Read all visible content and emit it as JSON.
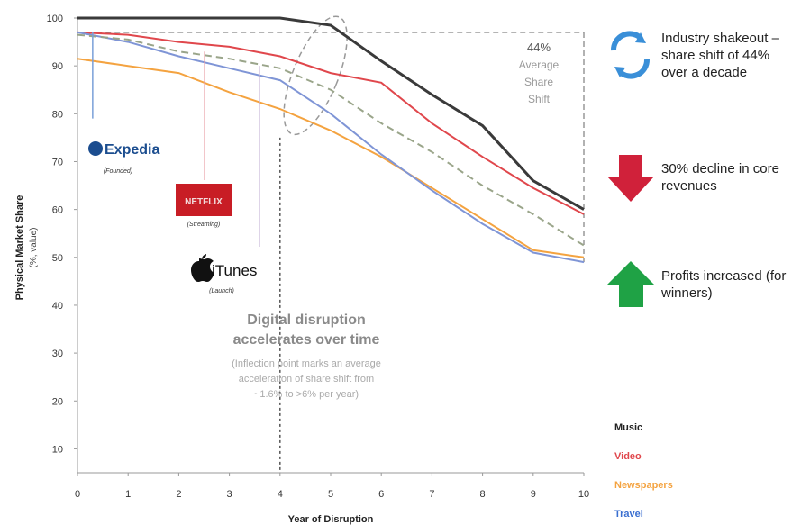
{
  "chart_data": {
    "type": "line",
    "xlabel": "Year of Disruption",
    "ylabel": "Physical Market Share",
    "ylabel_unit": "(%, value)",
    "xlim": [
      0,
      10
    ],
    "ylim": [
      5,
      100
    ],
    "x_ticks": [
      "0",
      "1",
      "2",
      "3",
      "4",
      "5",
      "6",
      "7",
      "8",
      "9",
      "10"
    ],
    "y_ticks": [
      "10",
      "20",
      "30",
      "40",
      "50",
      "60",
      "70",
      "80",
      "90",
      "100"
    ],
    "grid": false,
    "legend_position": "bottom-right",
    "x": [
      0,
      1,
      2,
      3,
      4,
      5,
      6,
      7,
      8,
      9,
      10
    ],
    "series": [
      {
        "name": "Music",
        "color": "#3a3a3a",
        "values": [
          100,
          100,
          100,
          100,
          100,
          98.5,
          91,
          84,
          77.5,
          66,
          60
        ]
      },
      {
        "name": "Video",
        "color": "#e0474c",
        "values": [
          97,
          96.5,
          95,
          94,
          92,
          88.5,
          86.5,
          78,
          71,
          64.5,
          59
        ]
      },
      {
        "name": "Newspapers",
        "color": "#f4a340",
        "values": [
          91.5,
          90,
          88.5,
          84.5,
          81,
          76.5,
          71,
          64.5,
          58,
          51.5,
          50
        ]
      },
      {
        "name": "Travel",
        "color": "#7f95d6",
        "values": [
          97,
          95,
          92,
          89.5,
          87,
          80,
          71.5,
          64,
          57,
          51,
          49
        ]
      },
      {
        "name": "",
        "color": "#9aa58a",
        "dashed": true,
        "values": [
          96.5,
          95.5,
          93,
          91.5,
          89.5,
          85,
          78,
          72,
          65,
          59,
          52.5
        ]
      }
    ],
    "average_label": [
      "44%",
      "Average",
      "Share",
      "Shift"
    ],
    "annotation_title": [
      "Digital disruption",
      "accelerates over time"
    ],
    "annotation_body": [
      "(Inflection point marks an average",
      "acceleration of share shift from",
      "~1.6% to >6% per year)"
    ],
    "events": [
      {
        "brand": "Expedia",
        "caption": "(Founded)",
        "x": 0.3
      },
      {
        "brand": "NETFLIX",
        "caption": "(Streaming)",
        "x": 2.5
      },
      {
        "brand": "iTunes",
        "caption": "(Launch)",
        "x": 3.6
      }
    ]
  },
  "side_notes": [
    {
      "icon": "recycle-arrows-icon",
      "text": [
        "Industry shakeout –",
        "share shift of 44%",
        "over a decade"
      ],
      "color": "#3a8fd8"
    },
    {
      "icon": "down-arrow-icon",
      "text": [
        "30% decline in core",
        "revenues"
      ],
      "color": "#d0213a"
    },
    {
      "icon": "up-arrow-icon",
      "text": [
        "Profits increased (for",
        "winners)"
      ],
      "color": "#1fa245"
    }
  ],
  "legend": [
    {
      "label": "Music",
      "color": "#222222"
    },
    {
      "label": "Video",
      "color": "#e0474c"
    },
    {
      "label": "Newspapers",
      "color": "#f4a340"
    },
    {
      "label": "Travel",
      "color": "#3a6fd0"
    }
  ]
}
